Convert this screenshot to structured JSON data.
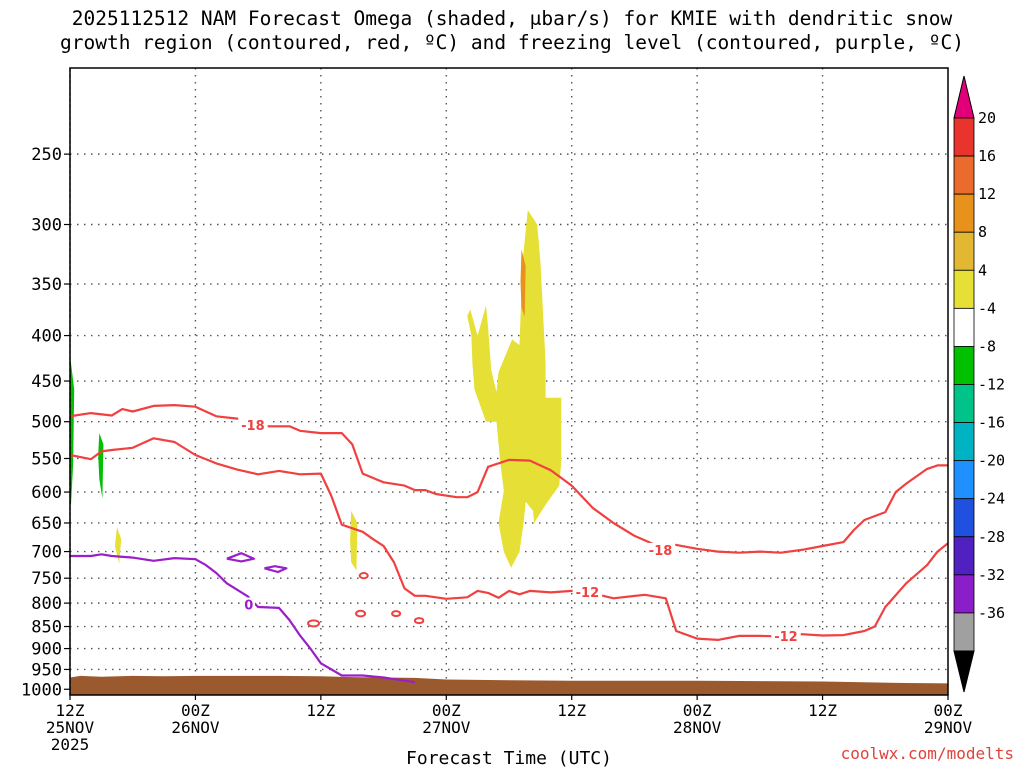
{
  "title_line1": "2025112512 NAM Forecast Omega (shaded, μbar/s) for KMIE with dendritic snow",
  "title_line2": "growth region (contoured, red, ºC) and freezing level (contoured, purple, ºC)",
  "credit": "coolwx.com/modelts",
  "chart_data": {
    "type": "heatmap",
    "title": "2025112512 NAM Forecast Omega (shaded, μbar/s) for KMIE with dendritic snow growth region (contoured, red, ºC) and freezing level (contoured, purple, ºC)",
    "xlabel": "Forecast Time (UTC)",
    "ylabel": "",
    "xlim": [
      0,
      84
    ],
    "ylim": [
      1000,
      200
    ],
    "y_scale": "log-pressure",
    "y_ticks": [
      250,
      300,
      350,
      400,
      450,
      500,
      550,
      600,
      650,
      700,
      750,
      800,
      850,
      900,
      950,
      1000
    ],
    "x_ticks": [
      {
        "hour": 0,
        "line1": "12Z",
        "line2": "25NOV",
        "line3": "2025"
      },
      {
        "hour": 12,
        "line1": "00Z",
        "line2": "26NOV",
        "line3": ""
      },
      {
        "hour": 24,
        "line1": "12Z",
        "line2": "",
        "line3": ""
      },
      {
        "hour": 36,
        "line1": "00Z",
        "line2": "27NOV",
        "line3": ""
      },
      {
        "hour": 48,
        "line1": "12Z",
        "line2": "",
        "line3": ""
      },
      {
        "hour": 60,
        "line1": "00Z",
        "line2": "28NOV",
        "line3": ""
      },
      {
        "hour": 72,
        "line1": "12Z",
        "line2": "",
        "line3": ""
      },
      {
        "hour": 84,
        "line1": "00Z",
        "line2": "29NOV",
        "line3": ""
      }
    ],
    "colorbar": {
      "labels": [
        "20",
        "16",
        "12",
        "8",
        "4",
        "-4",
        "-8",
        "-12",
        "-16",
        "-20",
        "-24",
        "-28",
        "-32",
        "-36"
      ],
      "colors": [
        "#e2007a",
        "#e8342d",
        "#ea6b2b",
        "#e8921c",
        "#e2b732",
        "#e6df35",
        "#ffffff",
        "#00c000",
        "#00c38a",
        "#00b3c3",
        "#1e90ff",
        "#2050e0",
        "#5020c0",
        "#8a1ec8",
        "#a0a0a0",
        "#000000"
      ]
    },
    "contours": [
      {
        "name": "-18°C",
        "color": "#f04040",
        "label": "-18",
        "points": [
          [
            0,
            493
          ],
          [
            2,
            489
          ],
          [
            4,
            492
          ],
          [
            5,
            484
          ],
          [
            6,
            487
          ],
          [
            8,
            480
          ],
          [
            10,
            479
          ],
          [
            12,
            481
          ],
          [
            14,
            493
          ],
          [
            16,
            496
          ],
          [
            18,
            503
          ],
          [
            19,
            506
          ],
          [
            21,
            506
          ],
          [
            22,
            512
          ],
          [
            24,
            515
          ],
          [
            26,
            515
          ],
          [
            27,
            530
          ],
          [
            28,
            572
          ],
          [
            30,
            585
          ],
          [
            32,
            590
          ],
          [
            33,
            597
          ],
          [
            34,
            597
          ],
          [
            35,
            603
          ],
          [
            37,
            608
          ],
          [
            38,
            608
          ],
          [
            39,
            600
          ],
          [
            40,
            562
          ],
          [
            42,
            552
          ],
          [
            44,
            553
          ],
          [
            46,
            567
          ],
          [
            48,
            590
          ],
          [
            50,
            625
          ],
          [
            52,
            650
          ],
          [
            54,
            672
          ],
          [
            56,
            688
          ],
          [
            58,
            688
          ],
          [
            60,
            695
          ],
          [
            62,
            700
          ],
          [
            64,
            702
          ],
          [
            66,
            700
          ],
          [
            68,
            702
          ],
          [
            70,
            697
          ],
          [
            72,
            690
          ],
          [
            74,
            683
          ],
          [
            75,
            662
          ],
          [
            76,
            645
          ],
          [
            78,
            632
          ],
          [
            79,
            600
          ],
          [
            80,
            587
          ],
          [
            82,
            565
          ],
          [
            83,
            560
          ],
          [
            84,
            560
          ]
        ]
      },
      {
        "name": "-12°C",
        "color": "#f04040",
        "label": "-12",
        "points": [
          [
            0,
            545
          ],
          [
            2,
            551
          ],
          [
            3,
            540
          ],
          [
            4,
            538
          ],
          [
            6,
            535
          ],
          [
            8,
            522
          ],
          [
            10,
            527
          ],
          [
            12,
            545
          ],
          [
            14,
            557
          ],
          [
            16,
            566
          ],
          [
            18,
            573
          ],
          [
            20,
            568
          ],
          [
            22,
            573
          ],
          [
            24,
            572
          ],
          [
            25,
            606
          ],
          [
            26,
            653
          ],
          [
            28,
            665
          ],
          [
            29,
            678
          ],
          [
            30,
            690
          ],
          [
            31,
            720
          ],
          [
            32,
            770
          ],
          [
            33,
            785
          ],
          [
            34,
            785
          ],
          [
            36,
            791
          ],
          [
            38,
            788
          ],
          [
            39,
            775
          ],
          [
            40,
            779
          ],
          [
            41,
            789
          ],
          [
            42,
            775
          ],
          [
            43,
            782
          ],
          [
            44,
            775
          ],
          [
            46,
            778
          ],
          [
            48,
            775
          ],
          [
            50,
            780
          ],
          [
            52,
            790
          ],
          [
            55,
            783
          ],
          [
            57,
            790
          ],
          [
            58,
            860
          ],
          [
            60,
            877
          ],
          [
            62,
            880
          ],
          [
            64,
            871
          ],
          [
            66,
            871
          ],
          [
            68,
            872
          ],
          [
            70,
            867
          ],
          [
            72,
            870
          ],
          [
            74,
            869
          ],
          [
            76,
            860
          ],
          [
            77,
            850
          ],
          [
            78,
            808
          ],
          [
            80,
            760
          ],
          [
            82,
            725
          ],
          [
            83,
            700
          ],
          [
            84,
            685
          ]
        ]
      },
      {
        "name": "0°C",
        "color": "#9b1ec8",
        "label": "0",
        "points": [
          [
            0,
            708
          ],
          [
            2,
            708
          ],
          [
            3,
            705
          ],
          [
            4,
            708
          ],
          [
            6,
            711
          ],
          [
            8,
            717
          ],
          [
            10,
            712
          ],
          [
            12,
            714
          ],
          [
            13,
            725
          ],
          [
            14,
            740
          ],
          [
            15,
            760
          ],
          [
            17,
            786
          ],
          [
            18,
            808
          ],
          [
            20,
            810
          ],
          [
            21,
            836
          ],
          [
            22,
            870
          ],
          [
            23,
            900
          ],
          [
            24,
            935
          ],
          [
            26,
            965
          ],
          [
            28,
            965
          ],
          [
            30,
            970
          ],
          [
            32,
            978
          ],
          [
            33,
            982
          ]
        ]
      },
      {
        "name": "0°C small loop",
        "color": "#9b1ec8",
        "label": "",
        "points": [
          [
            15,
            713
          ],
          [
            16.4,
            703
          ],
          [
            17.6,
            713
          ],
          [
            16.4,
            718
          ],
          [
            15,
            713
          ]
        ]
      },
      {
        "name": "0°C small loop 2",
        "color": "#9b1ec8",
        "label": "",
        "points": [
          [
            18.6,
            731
          ],
          [
            19.6,
            727
          ],
          [
            20.7,
            731
          ],
          [
            19.9,
            738
          ],
          [
            18.6,
            731
          ]
        ]
      }
    ],
    "omega_regions": [
      {
        "value": "4 to 8",
        "color": "#e6df35",
        "points": [
          [
            38,
            380
          ],
          [
            38.3,
            374
          ],
          [
            39,
            400
          ],
          [
            39.8,
            370
          ],
          [
            40,
            392
          ],
          [
            40.3,
            437
          ],
          [
            40.8,
            463
          ],
          [
            41,
            440
          ],
          [
            41.7,
            420
          ],
          [
            42.3,
            404
          ],
          [
            43,
            410
          ],
          [
            43.3,
            330
          ],
          [
            43.8,
            289
          ],
          [
            44.7,
            300
          ],
          [
            45,
            330
          ],
          [
            45.5,
            430
          ],
          [
            45.5,
            470
          ],
          [
            47,
            470
          ],
          [
            47,
            555
          ],
          [
            46.8,
            590
          ],
          [
            45.5,
            620
          ],
          [
            44.4,
            650
          ],
          [
            44.3,
            630
          ],
          [
            43.6,
            615
          ],
          [
            43.4,
            650
          ],
          [
            43,
            700
          ],
          [
            42.2,
            730
          ],
          [
            41.5,
            700
          ],
          [
            41,
            650
          ],
          [
            41.5,
            598
          ],
          [
            41.2,
            560
          ],
          [
            40.8,
            500
          ],
          [
            39.8,
            500
          ],
          [
            38.7,
            460
          ],
          [
            38.5,
            430
          ],
          [
            38.4,
            400
          ],
          [
            38,
            380
          ]
        ]
      },
      {
        "value": "8 to 12",
        "color": "#e8921c",
        "points": [
          [
            43.2,
            320
          ],
          [
            43.6,
            334
          ],
          [
            43.5,
            381
          ],
          [
            43.2,
            372
          ],
          [
            43.1,
            348
          ],
          [
            43.2,
            320
          ]
        ]
      },
      {
        "value": "4 to 8",
        "color": "#e6df35",
        "points": [
          [
            4.5,
            657
          ],
          [
            4.9,
            678
          ],
          [
            4.7,
            722
          ],
          [
            4.3,
            690
          ],
          [
            4.5,
            657
          ]
        ]
      },
      {
        "value": "4 to 8",
        "color": "#e6df35",
        "points": [
          [
            26.9,
            630
          ],
          [
            27.5,
            650
          ],
          [
            27.4,
            735
          ],
          [
            26.9,
            720
          ],
          [
            26.8,
            680
          ],
          [
            26.9,
            630
          ]
        ]
      },
      {
        "value": "-4 to -8",
        "color": "#00c000",
        "points": [
          [
            0.05,
            425
          ],
          [
            0.4,
            460
          ],
          [
            0.3,
            560
          ],
          [
            0.1,
            620
          ],
          [
            0,
            620
          ],
          [
            0,
            425
          ],
          [
            0.05,
            425
          ]
        ]
      },
      {
        "value": "-4 to -8",
        "color": "#00c000",
        "points": [
          [
            2.8,
            515
          ],
          [
            3.2,
            530
          ],
          [
            3.1,
            610
          ],
          [
            2.8,
            580
          ],
          [
            2.7,
            545
          ],
          [
            2.8,
            515
          ]
        ]
      }
    ],
    "terrain": {
      "color": "#9b5a2e",
      "top_points": [
        [
          0,
          970
        ],
        [
          1,
          966
        ],
        [
          3,
          968
        ],
        [
          6,
          966
        ],
        [
          9,
          967
        ],
        [
          12,
          966
        ],
        [
          20,
          966
        ],
        [
          24,
          967
        ],
        [
          27,
          969
        ],
        [
          33,
          971
        ],
        [
          36,
          975
        ],
        [
          42,
          977
        ],
        [
          48,
          978
        ],
        [
          60,
          978
        ],
        [
          66,
          979
        ],
        [
          72,
          980
        ],
        [
          80,
          984
        ],
        [
          84,
          985
        ]
      ]
    }
  }
}
